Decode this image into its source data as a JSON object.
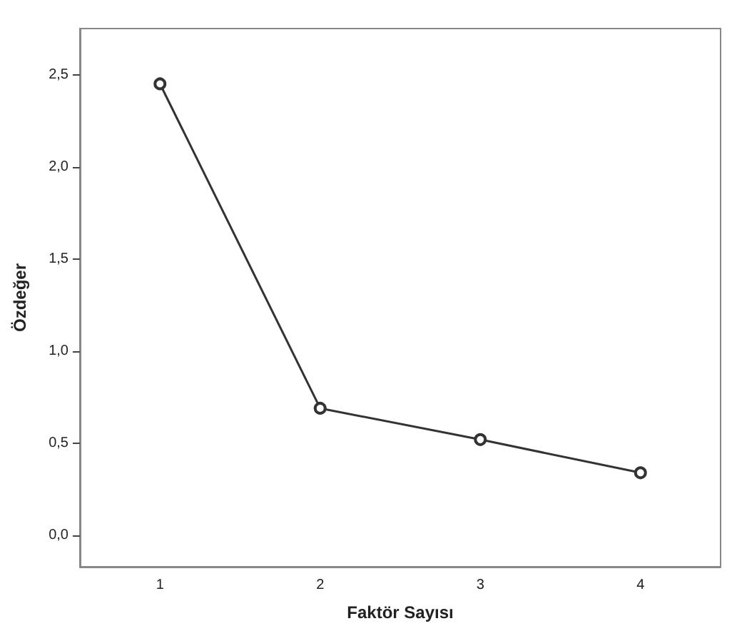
{
  "chart_data": {
    "type": "line",
    "xlabel": "Faktör Sayısı",
    "ylabel": "Özdeğer",
    "categories": [
      "1",
      "2",
      "3",
      "4"
    ],
    "series": [
      {
        "color": "#333333",
        "values": [
          2.45,
          0.69,
          0.52,
          0.34
        ]
      }
    ],
    "ylim": [
      -0.17,
      2.75
    ],
    "yticks": [
      {
        "value": 0,
        "label": "0,0"
      },
      {
        "value": 0.5,
        "label": "0,5"
      },
      {
        "value": 1,
        "label": "1,0"
      },
      {
        "value": 1.5,
        "label": "1,5"
      },
      {
        "value": 2,
        "label": "2,0"
      },
      {
        "value": 2.5,
        "label": "2,5"
      }
    ],
    "grid": false,
    "marker": "circle",
    "line_style": "solid"
  }
}
